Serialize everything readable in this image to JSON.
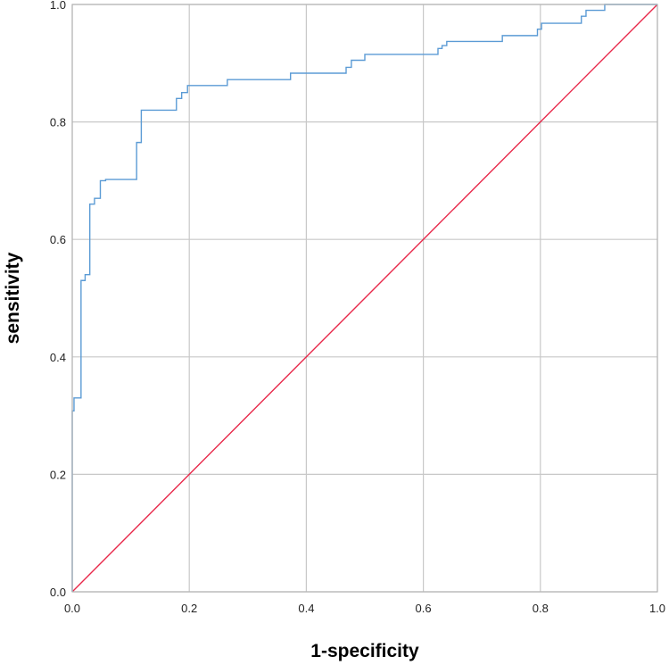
{
  "chart_data": {
    "type": "line",
    "title": "",
    "xlabel": "1-specificity",
    "ylabel": "sensitivity",
    "xlim": [
      0,
      1
    ],
    "ylim": [
      0,
      1
    ],
    "grid": true,
    "legend": "none",
    "x_ticks": [
      "0.0",
      "0.2",
      "0.4",
      "0.6",
      "0.8",
      "1.0"
    ],
    "y_ticks": [
      "0.0",
      "0.2",
      "0.4",
      "0.6",
      "0.8",
      "1.0"
    ],
    "colors": {
      "roc_curve": "#5b9bd5",
      "reference_line": "#e8284a",
      "grid": "#c8c8c8",
      "frame": "#b4b4b4"
    },
    "series": [
      {
        "role": "roc_curve",
        "x": [
          0.0,
          0.0,
          0.003,
          0.003,
          0.015,
          0.015,
          0.022,
          0.022,
          0.03,
          0.03,
          0.038,
          0.038,
          0.048,
          0.048,
          0.057,
          0.057,
          0.11,
          0.11,
          0.118,
          0.118,
          0.178,
          0.178,
          0.187,
          0.187,
          0.197,
          0.197,
          0.265,
          0.265,
          0.373,
          0.373,
          0.468,
          0.468,
          0.477,
          0.477,
          0.5,
          0.5,
          0.625,
          0.625,
          0.632,
          0.632,
          0.64,
          0.64,
          0.735,
          0.735,
          0.795,
          0.795,
          0.802,
          0.802,
          0.87,
          0.87,
          0.878,
          0.878,
          0.91,
          0.91,
          1.0
        ],
        "y": [
          0.0,
          0.308,
          0.308,
          0.33,
          0.33,
          0.53,
          0.53,
          0.54,
          0.54,
          0.66,
          0.66,
          0.67,
          0.67,
          0.7,
          0.7,
          0.702,
          0.702,
          0.765,
          0.765,
          0.82,
          0.82,
          0.84,
          0.84,
          0.85,
          0.85,
          0.862,
          0.862,
          0.872,
          0.872,
          0.883,
          0.883,
          0.893,
          0.893,
          0.905,
          0.905,
          0.915,
          0.915,
          0.925,
          0.925,
          0.93,
          0.93,
          0.937,
          0.937,
          0.947,
          0.947,
          0.958,
          0.958,
          0.968,
          0.968,
          0.98,
          0.98,
          0.99,
          0.99,
          1.0,
          1.0
        ]
      },
      {
        "role": "reference_line",
        "x": [
          0,
          1
        ],
        "y": [
          0,
          1
        ]
      }
    ]
  }
}
